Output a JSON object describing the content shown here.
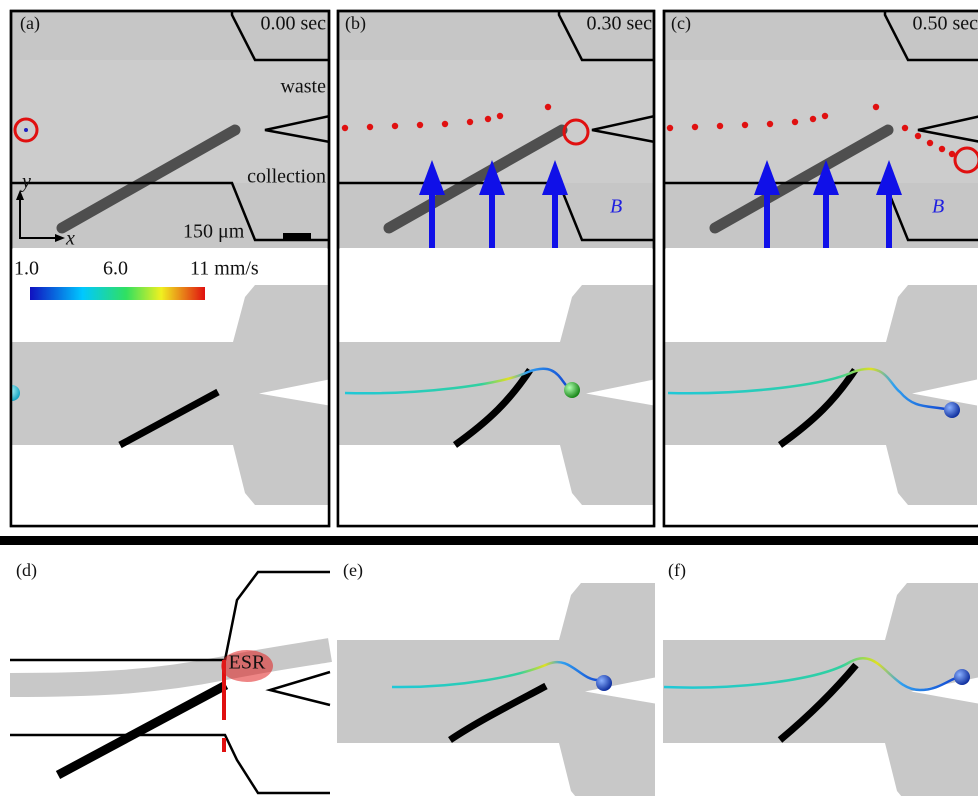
{
  "panels": [
    {
      "label": "(a)",
      "time": "0.00 sec"
    },
    {
      "label": "(b)",
      "time": "0.30 sec"
    },
    {
      "label": "(c)",
      "time": "0.50 sec"
    }
  ],
  "annotations": {
    "waste": "waste",
    "collection": "collection",
    "y_axis": "y",
    "x_axis": "x",
    "scale_bar": "150 μm",
    "field_b": "B⃗"
  },
  "colorbar": {
    "labels": [
      "1.0",
      "6.0",
      "11 mm/s"
    ]
  },
  "bottom_panels": [
    {
      "label": "(d)",
      "region": "ESR"
    },
    {
      "label": "(e)"
    },
    {
      "label": "(f)"
    }
  ]
}
